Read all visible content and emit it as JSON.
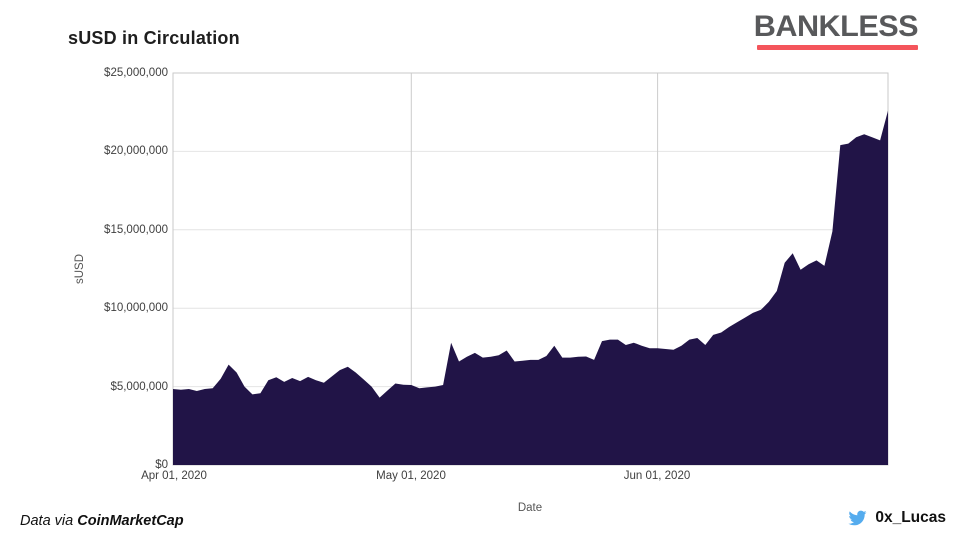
{
  "header": {
    "title": "sUSD in Circulation"
  },
  "logo": {
    "text": "BANKLESS",
    "text_color": "#58595b",
    "underline_color": "#f4555b"
  },
  "footer": {
    "data_via_prefix": "Data via ",
    "data_via_source": "CoinMarketCap",
    "twitter_handle": "0x_Lucas",
    "twitter_blue": "#55acee"
  },
  "chart_data": {
    "type": "area",
    "title": "sUSD in Circulation",
    "xlabel": "Date",
    "ylabel": "sUSD",
    "ylim": [
      0,
      25000000
    ],
    "grid": true,
    "area_color": "#211447",
    "y_ticks": [
      "$25,000,000",
      "$20,000,000",
      "$15,000,000",
      "$10,000,000",
      "$5,000,000",
      "$0"
    ],
    "y_tick_values": [
      25000000,
      20000000,
      15000000,
      10000000,
      5000000,
      0
    ],
    "x_ticks": [
      "Apr 01, 2020",
      "May 01, 2020",
      "Jun 01, 2020"
    ],
    "x_tick_indices": [
      0,
      30,
      61
    ],
    "x": [
      "2020-04-01",
      "2020-04-02",
      "2020-04-03",
      "2020-04-04",
      "2020-04-05",
      "2020-04-06",
      "2020-04-07",
      "2020-04-08",
      "2020-04-09",
      "2020-04-10",
      "2020-04-11",
      "2020-04-12",
      "2020-04-13",
      "2020-04-14",
      "2020-04-15",
      "2020-04-16",
      "2020-04-17",
      "2020-04-18",
      "2020-04-19",
      "2020-04-20",
      "2020-04-21",
      "2020-04-22",
      "2020-04-23",
      "2020-04-24",
      "2020-04-25",
      "2020-04-26",
      "2020-04-27",
      "2020-04-28",
      "2020-04-29",
      "2020-04-30",
      "2020-05-01",
      "2020-05-02",
      "2020-05-03",
      "2020-05-04",
      "2020-05-05",
      "2020-05-06",
      "2020-05-07",
      "2020-05-08",
      "2020-05-09",
      "2020-05-10",
      "2020-05-11",
      "2020-05-12",
      "2020-05-13",
      "2020-05-14",
      "2020-05-15",
      "2020-05-16",
      "2020-05-17",
      "2020-05-18",
      "2020-05-19",
      "2020-05-20",
      "2020-05-21",
      "2020-05-22",
      "2020-05-23",
      "2020-05-24",
      "2020-05-25",
      "2020-05-26",
      "2020-05-27",
      "2020-05-28",
      "2020-05-29",
      "2020-05-30",
      "2020-05-31",
      "2020-06-01",
      "2020-06-02",
      "2020-06-03",
      "2020-06-04",
      "2020-06-05",
      "2020-06-06",
      "2020-06-07",
      "2020-06-08",
      "2020-06-09",
      "2020-06-10",
      "2020-06-11",
      "2020-06-12",
      "2020-06-13",
      "2020-06-14",
      "2020-06-15",
      "2020-06-16",
      "2020-06-17",
      "2020-06-18",
      "2020-06-19",
      "2020-06-20",
      "2020-06-21",
      "2020-06-22",
      "2020-06-23",
      "2020-06-24",
      "2020-06-25",
      "2020-06-26",
      "2020-06-27",
      "2020-06-28",
      "2020-06-29",
      "2020-06-30"
    ],
    "values": [
      4850000,
      4800000,
      4850000,
      4720000,
      4850000,
      4900000,
      5500000,
      6400000,
      5900000,
      5000000,
      4500000,
      4580000,
      5400000,
      5600000,
      5300000,
      5550000,
      5350000,
      5620000,
      5400000,
      5250000,
      5650000,
      6050000,
      6270000,
      5900000,
      5450000,
      5000000,
      4300000,
      4750000,
      5200000,
      5120000,
      5100000,
      4900000,
      4950000,
      5000000,
      5100000,
      7800000,
      6600000,
      6900000,
      7150000,
      6850000,
      6900000,
      7000000,
      7300000,
      6600000,
      6650000,
      6700000,
      6700000,
      6950000,
      7600000,
      6850000,
      6850000,
      6900000,
      6920000,
      6700000,
      7900000,
      8000000,
      8000000,
      7650000,
      7800000,
      7600000,
      7450000,
      7450000,
      7400000,
      7350000,
      7600000,
      8000000,
      8100000,
      7650000,
      8300000,
      8450000,
      8800000,
      9100000,
      9400000,
      9700000,
      9900000,
      10400000,
      11100000,
      12900000,
      13500000,
      12450000,
      12800000,
      13050000,
      12700000,
      14900000,
      20400000,
      20500000,
      20900000,
      21100000,
      20900000,
      20700000,
      22600000
    ]
  }
}
